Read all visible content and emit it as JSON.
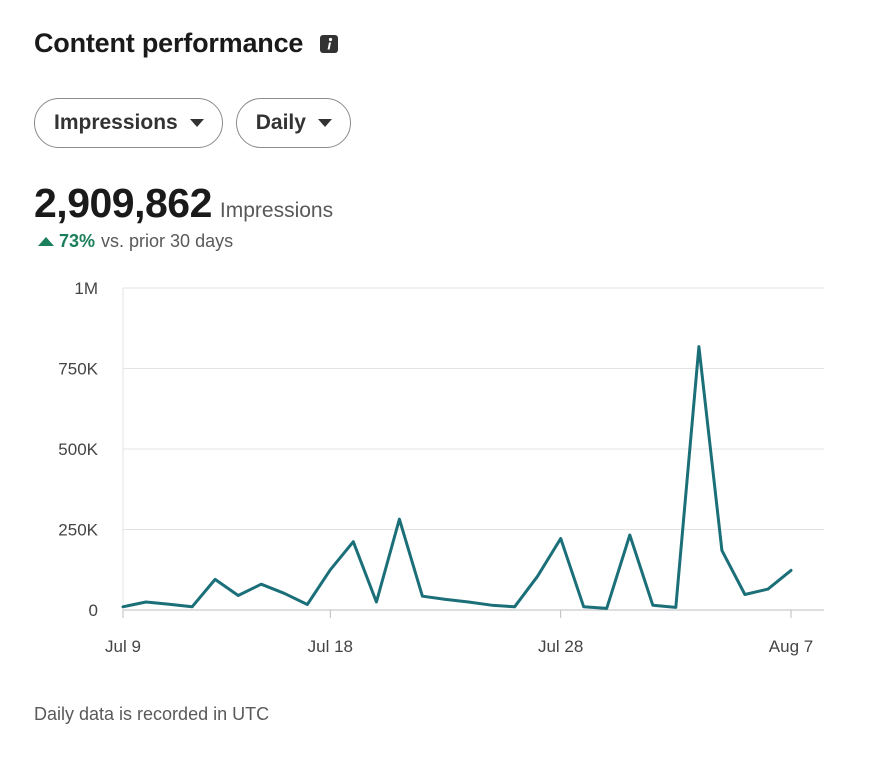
{
  "header": {
    "title": "Content performance",
    "info_icon": "info-icon"
  },
  "filters": {
    "metric_label": "Impressions",
    "period_label": "Daily"
  },
  "summary": {
    "value": "2,909,862",
    "unit": "Impressions",
    "change_pct": "73%",
    "change_text": "vs. prior 30 days",
    "change_direction": "up",
    "change_color": "#1a7f5a"
  },
  "footnote": "Daily data is recorded in UTC",
  "chart_data": {
    "type": "line",
    "title": "",
    "xlabel": "",
    "ylabel": "",
    "x": [
      "Jul 9",
      "Jul 10",
      "Jul 11",
      "Jul 12",
      "Jul 13",
      "Jul 14",
      "Jul 15",
      "Jul 16",
      "Jul 17",
      "Jul 18",
      "Jul 19",
      "Jul 20",
      "Jul 21",
      "Jul 22",
      "Jul 23",
      "Jul 24",
      "Jul 25",
      "Jul 26",
      "Jul 27",
      "Jul 28",
      "Jul 29",
      "Jul 30",
      "Jul 31",
      "Aug 1",
      "Aug 2",
      "Aug 3",
      "Aug 4",
      "Aug 5",
      "Aug 6",
      "Aug 7"
    ],
    "series": [
      {
        "values": [
          10000,
          25000,
          18000,
          10000,
          95000,
          45000,
          80000,
          52000,
          17000,
          125000,
          212000,
          25000,
          282000,
          43000,
          33000,
          25000,
          15000,
          10000,
          105000,
          222000,
          10000,
          5000,
          233000,
          15000,
          8000,
          818000,
          185000,
          48000,
          65000,
          123000
        ],
        "color": "#1b6f78"
      }
    ],
    "x_ticks": [
      "Jul 9",
      "Jul 18",
      "Jul 28",
      "Aug 7"
    ],
    "y_ticks": [
      {
        "value": 0,
        "label": "0"
      },
      {
        "value": 250000,
        "label": "250K"
      },
      {
        "value": 500000,
        "label": "500K"
      },
      {
        "value": 750000,
        "label": "750K"
      },
      {
        "value": 1000000,
        "label": "1M"
      }
    ],
    "ylim": [
      0,
      1000000
    ],
    "grid": true,
    "legend": "none"
  }
}
